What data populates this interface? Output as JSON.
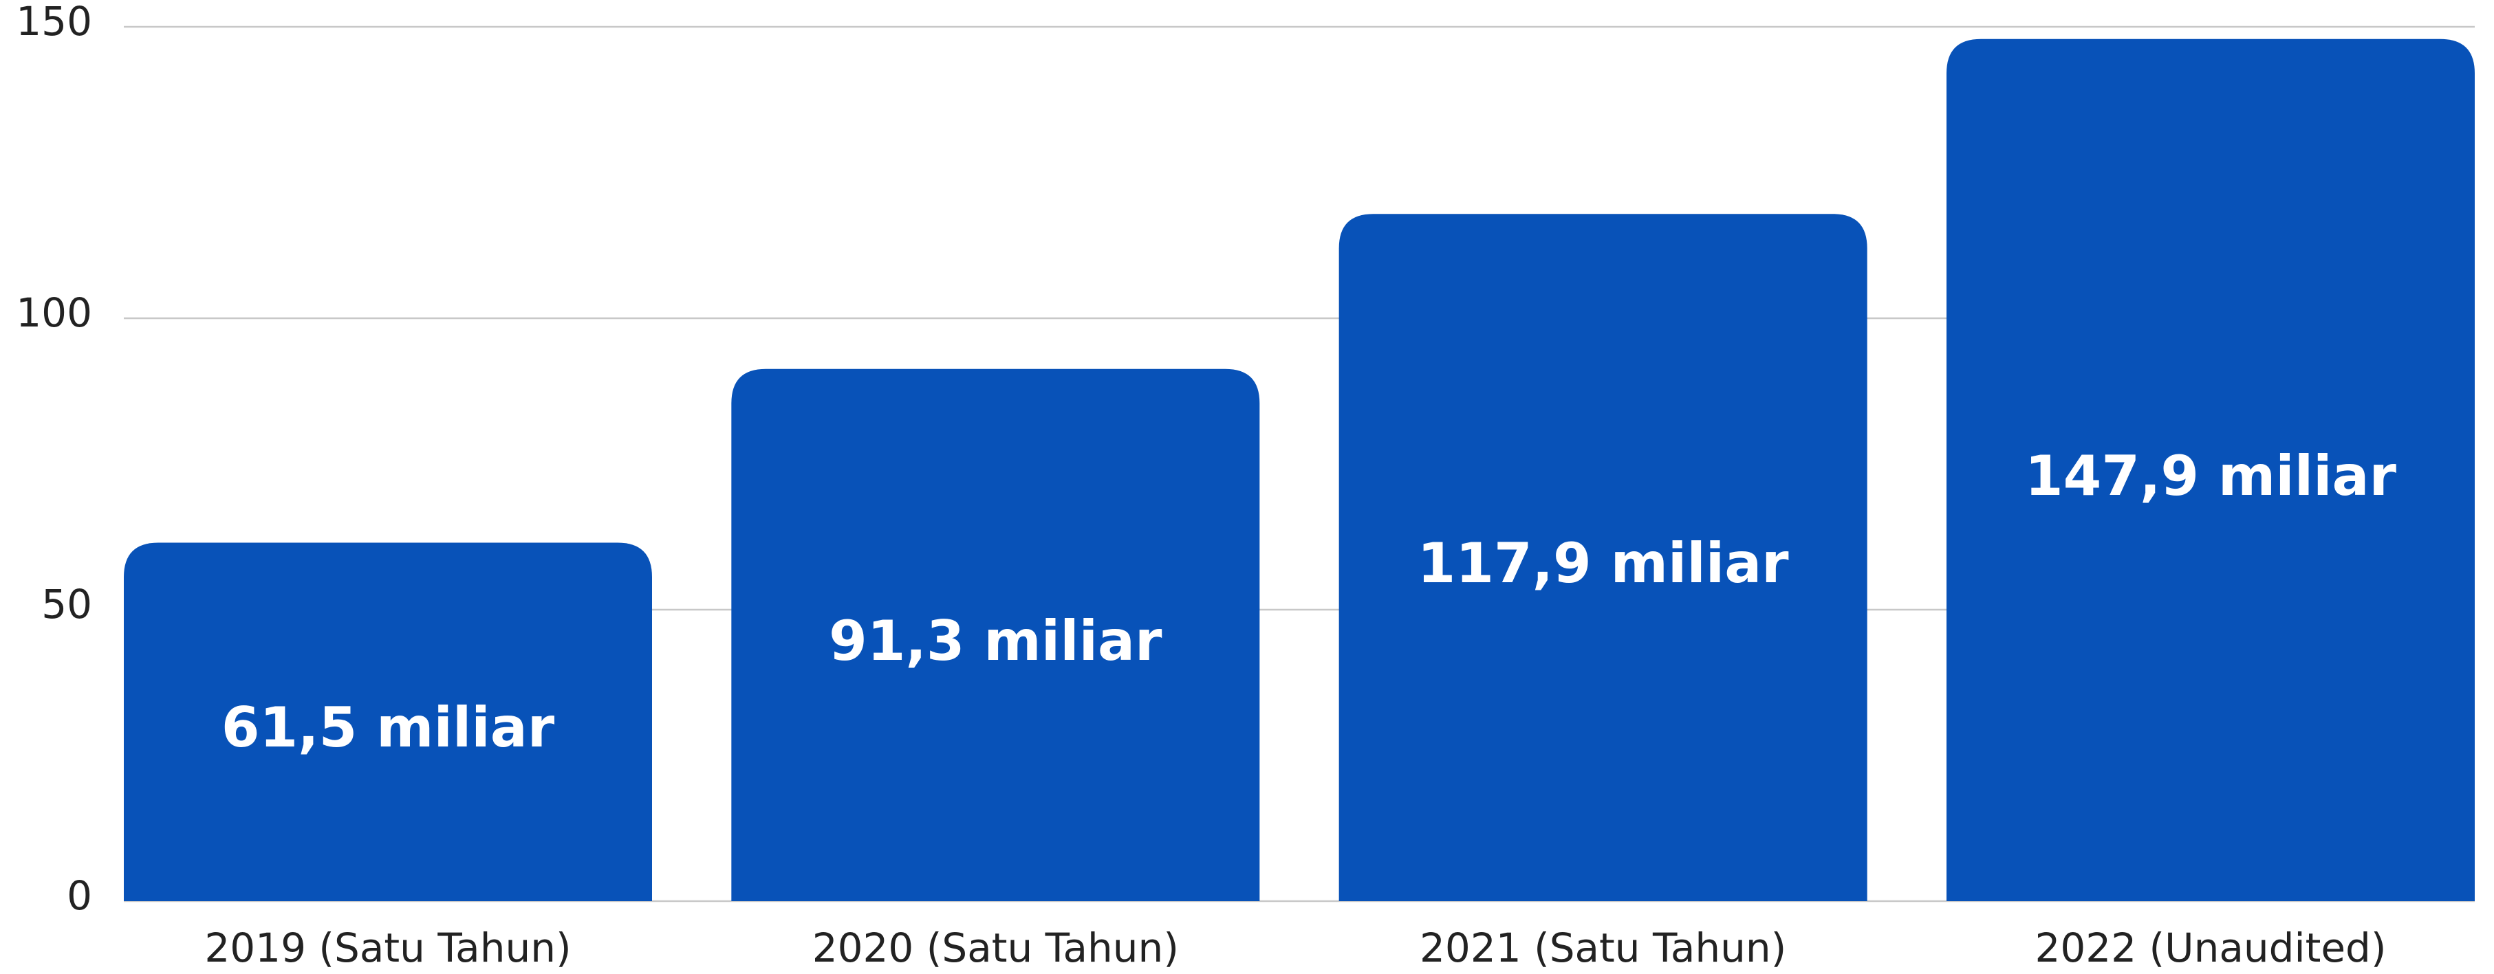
{
  "chart_data": {
    "type": "bar",
    "categories": [
      "2019 (Satu Tahun)",
      "2020 (Satu Tahun)",
      "2021 (Satu Tahun)",
      "2022 (Unaudited)"
    ],
    "values": [
      61.5,
      91.3,
      117.9,
      147.9
    ],
    "value_labels": [
      "61,5 miliar",
      "91,3 miliar",
      "117,9 miliar",
      "147,9 miliar"
    ],
    "color": "#0852b8",
    "ylim": [
      0,
      150
    ],
    "yticks": [
      0,
      50,
      100,
      150
    ],
    "grid": true
  }
}
